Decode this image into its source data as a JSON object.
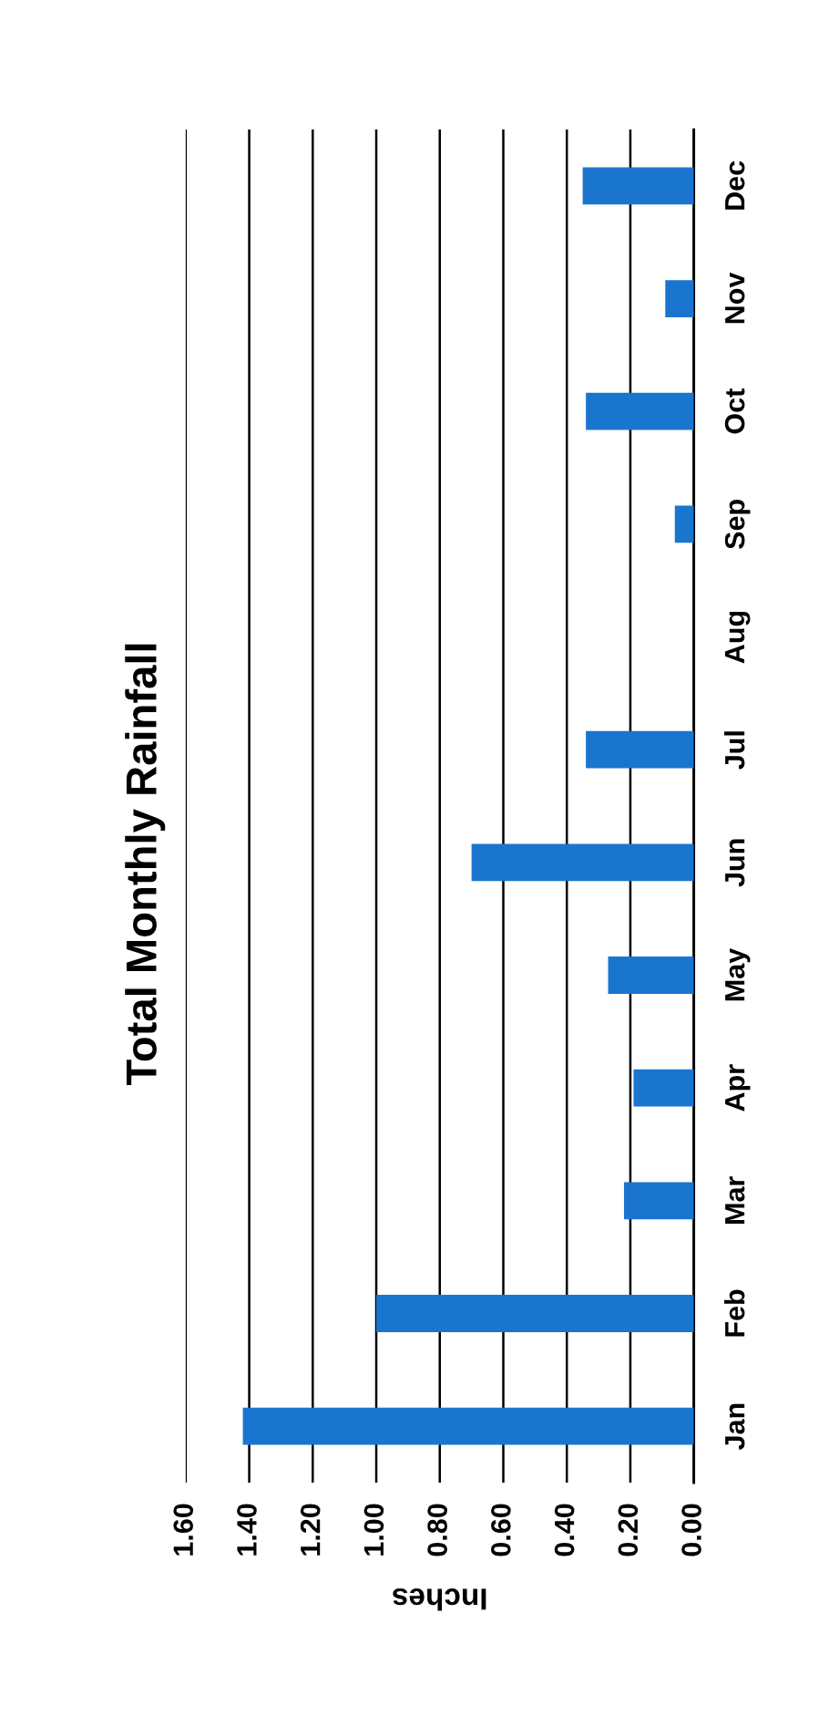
{
  "chart_data": {
    "type": "bar",
    "orientation": "horizontal",
    "title": "Total Monthly Rainfall",
    "xlabel": "Inches",
    "categories": [
      "Dec",
      "Nov",
      "Oct",
      "Sep",
      "Aug",
      "Jul",
      "Jun",
      "May",
      "Apr",
      "Mar",
      "Feb",
      "Jan"
    ],
    "values": [
      0.35,
      0.09,
      0.34,
      0.06,
      0,
      0.34,
      0.7,
      0.27,
      0.19,
      0.22,
      1.0,
      1.42
    ],
    "color": "#1a75cf",
    "xlim": [
      1.6,
      0
    ],
    "xticks": [
      {
        "value": 1.6,
        "label": "1.60"
      },
      {
        "value": 1.4,
        "label": "1.40"
      },
      {
        "value": 1.2,
        "label": "1.20"
      },
      {
        "value": 1.0,
        "label": "1.00"
      },
      {
        "value": 0.8,
        "label": "0.80"
      },
      {
        "value": 0.6,
        "label": "0.60"
      },
      {
        "value": 0.4,
        "label": "0.40"
      },
      {
        "value": 0.2,
        "label": "0.20"
      },
      {
        "value": 0,
        "label": "0.00"
      }
    ],
    "grid": "x"
  }
}
